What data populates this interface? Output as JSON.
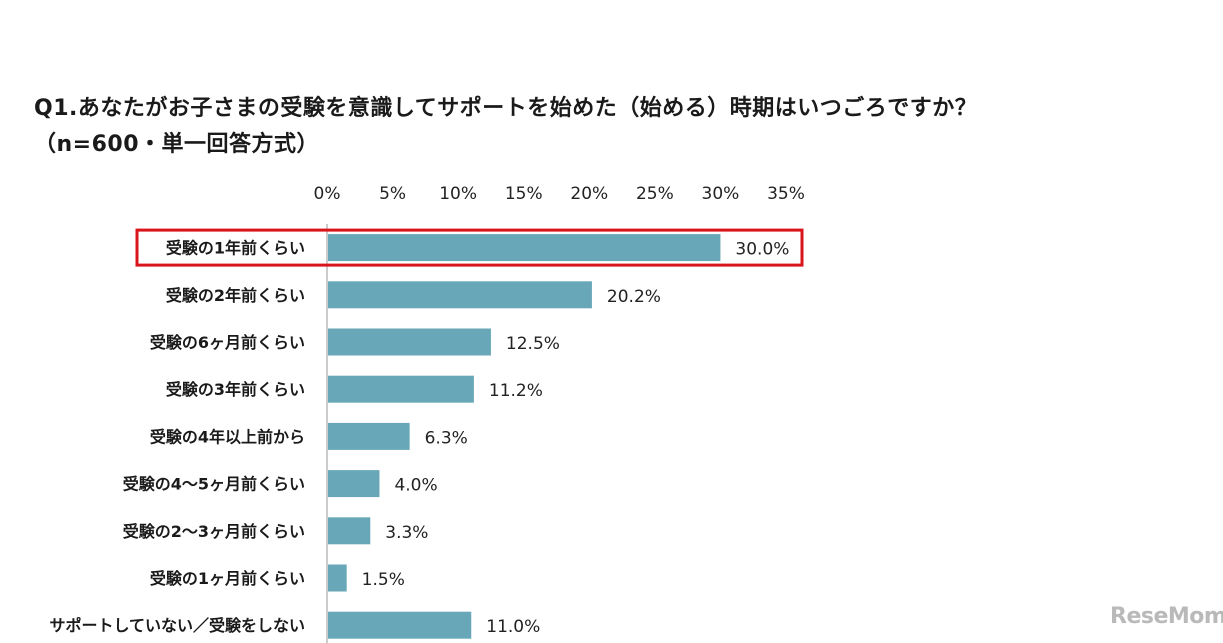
{
  "title_line1": "Q1.あなたがお子さまの受験を意識してサポートを始めた（始める）時期はいつごろですか？",
  "title_line2": "（n=600・単一回答方式）",
  "logo_text": "ReseMom",
  "chart_data": {
    "type": "bar",
    "orientation": "horizontal",
    "categories": [
      "受験の1年前くらい",
      "受験の2年前くらい",
      "受験の6ヶ月前くらい",
      "受験の3年前くらい",
      "受験の4年以上前から",
      "受験の4～5ヶ月前くらい",
      "受験の2～3ヶ月前くらい",
      "受験の1ヶ月前くらい",
      "サポートしていない／受験をしない"
    ],
    "values": [
      30.0,
      20.2,
      12.5,
      11.2,
      6.3,
      4.0,
      3.3,
      1.5,
      11.0
    ],
    "value_labels": [
      "30.0%",
      "20.2%",
      "12.5%",
      "11.2%",
      "6.3%",
      "4.0%",
      "3.3%",
      "1.5%",
      "11.0%"
    ],
    "xlim": [
      0,
      35
    ],
    "ticks": [
      "0%",
      "5%",
      "10%",
      "15%",
      "20%",
      "25%",
      "30%",
      "35%"
    ],
    "tick_values": [
      0,
      5,
      10,
      15,
      20,
      25,
      30,
      35
    ],
    "highlighted_category": "受験の1年前くらい",
    "bar_color": "#67a7b8",
    "highlight_color": "#d9141b",
    "grid": false
  }
}
